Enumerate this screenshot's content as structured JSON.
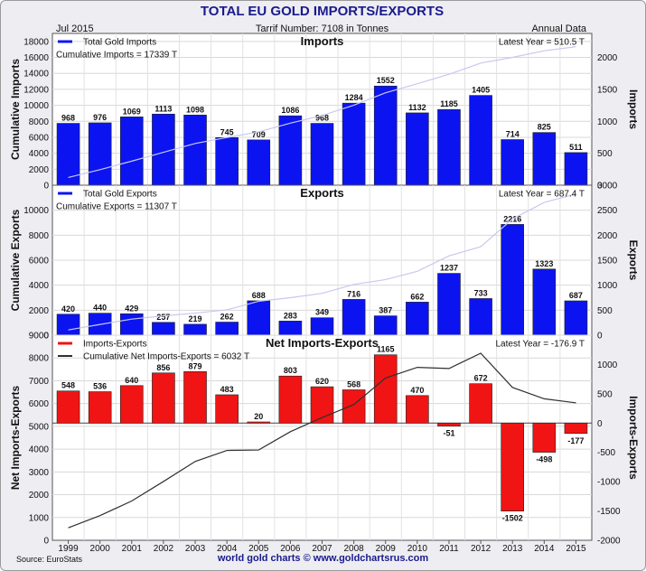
{
  "header": {
    "title": "TOTAL EU GOLD IMPORTS/EXPORTS",
    "date": "Jul  2015",
    "tariff": "Tarrif Number: 7108 in Tonnes",
    "frequency": "Annual Data"
  },
  "footer": {
    "source": "Source: EuroStats",
    "credit": "world gold charts © www.goldchartsrus.com"
  },
  "colors": {
    "imports_bar": "#0b14f0",
    "exports_bar": "#0b14f0",
    "net_bar": "#f01414",
    "cumulative_line_top": "#c8c8f0",
    "cumulative_line_net": "#303030",
    "background": "#ededf2",
    "plot_bg": "#ffffff"
  },
  "chart_data": [
    {
      "type": "bar",
      "title": "Imports",
      "ylabel_left": "Cumulative Imports",
      "ylabel_right": "Imports",
      "legend": [
        "Total Gold Imports",
        "Cumulative Imports = 17339 T"
      ],
      "latest": "Latest Year = 510.5 T",
      "categories": [
        "1999",
        "2000",
        "2001",
        "2002",
        "2003",
        "2004",
        "2005",
        "2006",
        "2007",
        "2008",
        "2009",
        "2010",
        "2011",
        "2012",
        "2013",
        "2014",
        "2015"
      ],
      "values": [
        968,
        976,
        1069,
        1113,
        1098,
        745,
        709,
        1086,
        968,
        1284,
        1552,
        1132,
        1185,
        1405,
        714,
        825,
        511
      ],
      "cumulative": [
        968,
        1944,
        3013,
        4126,
        5224,
        5969,
        6678,
        7764,
        8732,
        10016,
        11568,
        12700,
        13885,
        15290,
        16004,
        16829,
        17339
      ],
      "ylim_left": [
        0,
        19000
      ],
      "ylim_right": [
        0,
        2375
      ],
      "yticks_left": [
        0,
        2000,
        4000,
        6000,
        8000,
        10000,
        12000,
        14000,
        16000,
        18000
      ],
      "yticks_right": [
        0,
        500,
        1000,
        1500,
        2000
      ],
      "legend_position": "top-left",
      "grid": true
    },
    {
      "type": "bar",
      "title": "Exports",
      "ylabel_left": "Cumulative Exports",
      "ylabel_right": "Exports",
      "legend": [
        "Total Gold Exports",
        "Cumulative Exports = 11307 T"
      ],
      "latest": "Latest Year = 687.4 T",
      "categories": [
        "1999",
        "2000",
        "2001",
        "2002",
        "2003",
        "2004",
        "2005",
        "2006",
        "2007",
        "2008",
        "2009",
        "2010",
        "2011",
        "2012",
        "2013",
        "2014",
        "2015"
      ],
      "values": [
        420,
        440,
        429,
        257,
        219,
        262,
        688,
        283,
        349,
        716,
        387,
        662,
        1237,
        733,
        2216,
        1323,
        687
      ],
      "cumulative": [
        420,
        860,
        1289,
        1546,
        1765,
        2027,
        2715,
        2998,
        3347,
        4063,
        4450,
        5112,
        6349,
        7082,
        9298,
        10621,
        11307
      ],
      "ylim_left": [
        0,
        12000
      ],
      "ylim_right": [
        0,
        3000
      ],
      "yticks_left": [
        0,
        2000,
        4000,
        6000,
        8000,
        10000
      ],
      "yticks_right": [
        0,
        500,
        1000,
        1500,
        2000,
        2500,
        3000
      ],
      "legend_position": "top-left",
      "grid": true
    },
    {
      "type": "bar",
      "title": "Net Imports-Exports",
      "ylabel_left": "Net Imports-Exports",
      "ylabel_right": "Imports-Exports",
      "legend": [
        "Imports-Exports",
        "Cumulative Net Imports-Exports = 6032 T"
      ],
      "latest": "Latest Year = -176.9 T",
      "categories": [
        "1999",
        "2000",
        "2001",
        "2002",
        "2003",
        "2004",
        "2005",
        "2006",
        "2007",
        "2008",
        "2009",
        "2010",
        "2011",
        "2012",
        "2013",
        "2014",
        "2015"
      ],
      "values": [
        548,
        536,
        640,
        856,
        879,
        483,
        20,
        803,
        620,
        568,
        1165,
        470,
        -51,
        672,
        -1502,
        -498,
        -177
      ],
      "cumulative": [
        548,
        1084,
        1724,
        2580,
        3459,
        3942,
        3962,
        4765,
        5385,
        5953,
        7118,
        7588,
        7537,
        8209,
        6707,
        6209,
        6032
      ],
      "ylim_left": [
        0,
        9000
      ],
      "ylim_right": [
        -2000,
        1500
      ],
      "yticks_left": [
        0,
        1000,
        2000,
        3000,
        4000,
        5000,
        6000,
        7000,
        8000,
        9000
      ],
      "yticks_right": [
        -2000,
        -1500,
        -1000,
        -500,
        0,
        500,
        1000
      ],
      "legend_position": "top-left",
      "grid": true
    }
  ]
}
